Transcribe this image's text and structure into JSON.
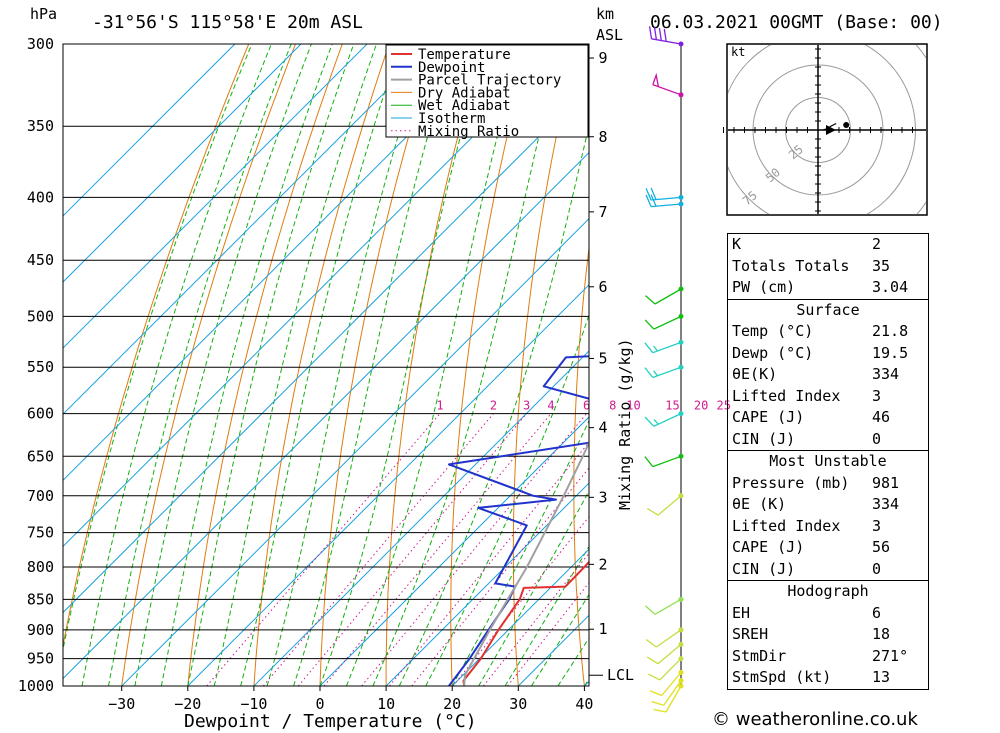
{
  "header": {
    "location": "-31°56'S 115°58'E 20m ASL",
    "datetime": "06.03.2021 00GMT (Base: 00)",
    "hpa_unit": "hPa",
    "km_unit": "km",
    "asl_label": "ASL"
  },
  "colors": {
    "temperature": "#e03030",
    "dewpoint": "#2233cc",
    "parcel": "#a0a0a0",
    "dry_adiabat": "#e07b10",
    "wet_adiabat": "#10b010",
    "isotherm": "#1aa0e0",
    "mixing_ratio": "#d01890"
  },
  "chart_data": {
    "type": "line",
    "title": "",
    "xlabel": "Dewpoint / Temperature (°C)",
    "ylabel": "hPa",
    "x_ticks": [
      -30,
      -20,
      -10,
      0,
      10,
      20,
      30,
      40
    ],
    "pressure_levels": [
      300,
      350,
      400,
      450,
      500,
      550,
      600,
      650,
      700,
      750,
      800,
      850,
      900,
      950,
      1000
    ],
    "km_labels": [
      "1",
      "2",
      "3",
      "4",
      "5",
      "6",
      "7",
      "8",
      "9"
    ],
    "km_pressures": [
      899,
      796,
      702,
      616,
      541,
      473,
      411,
      357,
      308
    ],
    "lcl_label": "LCL",
    "lcl_pressure": 980,
    "mixing_ratio_axis_label": "Mixing Ratio (g/kg)",
    "mixing_ratio_labels": [
      "1",
      "2",
      "3",
      "4",
      "6",
      "8",
      "10",
      "15",
      "20",
      "25"
    ],
    "mixing_ratio_values": [
      1,
      2,
      3,
      4,
      6,
      8,
      10,
      15,
      20,
      25
    ],
    "legend": [
      "Temperature",
      "Dewpoint",
      "Parcel Trajectory",
      "Dry Adiabat",
      "Wet Adiabat",
      "Isotherm",
      "Mixing Ratio"
    ],
    "series": [
      {
        "name": "Temperature",
        "points": [
          [
            1000,
            21.8
          ],
          [
            990,
            20.9
          ],
          [
            950,
            20.2
          ],
          [
            900,
            18.5
          ],
          [
            850,
            17.1
          ],
          [
            832,
            16.0
          ],
          [
            830,
            22.1
          ],
          [
            800,
            22.0
          ],
          [
            750,
            21.6
          ],
          [
            720,
            21.3
          ],
          [
            705,
            24.0
          ],
          [
            700,
            23.5
          ],
          [
            680,
            20.9
          ],
          [
            650,
            19.0
          ],
          [
            620,
            17.5
          ],
          [
            600,
            16.2
          ],
          [
            550,
            14.5
          ],
          [
            520,
            11.5
          ],
          [
            500,
            10.2
          ],
          [
            470,
            8.4
          ],
          [
            455,
            8.0
          ],
          [
            420,
            5.5
          ],
          [
            400,
            2.8
          ],
          [
            380,
            1.0
          ],
          [
            360,
            -1.5
          ],
          [
            350,
            -2.5
          ],
          [
            330,
            -3.5
          ],
          [
            320,
            -5.0
          ],
          [
            300,
            -7.0
          ]
        ]
      },
      {
        "name": "Dewpoint",
        "points": [
          [
            1000,
            19.5
          ],
          [
            950,
            18.5
          ],
          [
            900,
            17.0
          ],
          [
            850,
            15.5
          ],
          [
            830,
            14.5
          ],
          [
            825,
            11.0
          ],
          [
            740,
            7.0
          ],
          [
            716,
            -3.0
          ],
          [
            705,
            7.5
          ],
          [
            700,
            3.5
          ],
          [
            660,
            -14.0
          ],
          [
            615,
            17.0
          ],
          [
            570,
            -11.5
          ],
          [
            540,
            -12.5
          ],
          [
            530,
            15.5
          ],
          [
            500,
            5.5
          ],
          [
            490,
            -7.5
          ],
          [
            470,
            5.0
          ],
          [
            465,
            12.0
          ],
          [
            450,
            10.5
          ],
          [
            420,
            2.0
          ],
          [
            400,
            1.0
          ],
          [
            383,
            -10.0
          ],
          [
            363,
            2.0
          ],
          [
            345,
            -11.0
          ],
          [
            330,
            -5.0
          ],
          [
            322,
            5.5
          ],
          [
            310,
            10.0
          ],
          [
            300,
            8.0
          ]
        ]
      },
      {
        "name": "Parcel Trajectory",
        "points": [
          [
            1000,
            21.8
          ],
          [
            980,
            20.3
          ],
          [
            900,
            17.2
          ],
          [
            850,
            15.3
          ],
          [
            800,
            13.3
          ],
          [
            750,
            10.8
          ],
          [
            700,
            8.1
          ],
          [
            650,
            5.0
          ],
          [
            600,
            1.5
          ],
          [
            550,
            -2.6
          ],
          [
            500,
            -7.4
          ],
          [
            450,
            -13.2
          ],
          [
            400,
            -20.0
          ],
          [
            350,
            -28.5
          ],
          [
            300,
            -38.0
          ]
        ]
      }
    ],
    "wind_barbs": [
      {
        "pressure": 1000,
        "dir_deg": 210,
        "speed_kt": 10
      },
      {
        "pressure": 990,
        "dir_deg": 215,
        "speed_kt": 10
      },
      {
        "pressure": 975,
        "dir_deg": 220,
        "speed_kt": 10
      },
      {
        "pressure": 950,
        "dir_deg": 225,
        "speed_kt": 10
      },
      {
        "pressure": 925,
        "dir_deg": 230,
        "speed_kt": 10
      },
      {
        "pressure": 900,
        "dir_deg": 235,
        "speed_kt": 10
      },
      {
        "pressure": 850,
        "dir_deg": 240,
        "speed_kt": 10
      },
      {
        "pressure": 700,
        "dir_deg": 230,
        "speed_kt": 10
      },
      {
        "pressure": 650,
        "dir_deg": 250,
        "speed_kt": 10
      },
      {
        "pressure": 600,
        "dir_deg": 245,
        "speed_kt": 15
      },
      {
        "pressure": 550,
        "dir_deg": 250,
        "speed_kt": 15
      },
      {
        "pressure": 525,
        "dir_deg": 250,
        "speed_kt": 15
      },
      {
        "pressure": 500,
        "dir_deg": 245,
        "speed_kt": 10
      },
      {
        "pressure": 475,
        "dir_deg": 240,
        "speed_kt": 10
      },
      {
        "pressure": 405,
        "dir_deg": 265,
        "speed_kt": 20
      },
      {
        "pressure": 400,
        "dir_deg": 265,
        "speed_kt": 20
      },
      {
        "pressure": 330,
        "dir_deg": 290,
        "speed_kt": 50
      },
      {
        "pressure": 300,
        "dir_deg": 280,
        "speed_kt": 40
      }
    ],
    "wind_barb_colors": [
      "#e0e020",
      "#e0e020",
      "#e0e020",
      "#c0e040",
      "#c0e040",
      "#c0e040",
      "#90e050",
      "#c0e040",
      "#10c010",
      "#20d0c0",
      "#20d0c0",
      "#20d0c0",
      "#10c010",
      "#10c010",
      "#10b0e0",
      "#10b0e0",
      "#cc10aa",
      "#8020e0"
    ]
  },
  "hodograph": {
    "unit_label": "kt",
    "ring_labels": [
      "25",
      "50",
      "75"
    ],
    "points_kt": [
      [
        8,
        0
      ],
      [
        14,
        -2
      ],
      [
        20,
        -6
      ],
      [
        28,
        -10
      ]
    ]
  },
  "indices": {
    "k_label": "K",
    "k": "2",
    "tt_label": "Totals Totals",
    "tt": "35",
    "pw_label": "PW (cm)",
    "pw": "3.04"
  },
  "surface": {
    "title": "Surface",
    "temp_label": "Temp (°C)",
    "temp": "21.8",
    "dewp_label": "Dewp (°C)",
    "dewp": "19.5",
    "theta_e_label": "θE(K)",
    "theta_e": "334",
    "li_label": "Lifted Index",
    "li": "3",
    "cape_label": "CAPE (J)",
    "cape": "46",
    "cin_label": "CIN (J)",
    "cin": "0"
  },
  "most_unstable": {
    "title": "Most Unstable",
    "pressure_label": "Pressure (mb)",
    "pressure": "981",
    "theta_e_label": "θE (K)",
    "theta_e": "334",
    "li_label": "Lifted Index",
    "li": "3",
    "cape_label": "CAPE (J)",
    "cape": "56",
    "cin_label": "CIN (J)",
    "cin": "0"
  },
  "hodograph_params": {
    "title": "Hodograph",
    "eh_label": "EH",
    "eh": "6",
    "sreh_label": "SREH",
    "sreh": "18",
    "stmdir_label": "StmDir",
    "stmdir": "271°",
    "stmspd_label": "StmSpd (kt)",
    "stmspd": "13"
  },
  "footer": {
    "credit": "© weatheronline.co.uk"
  }
}
